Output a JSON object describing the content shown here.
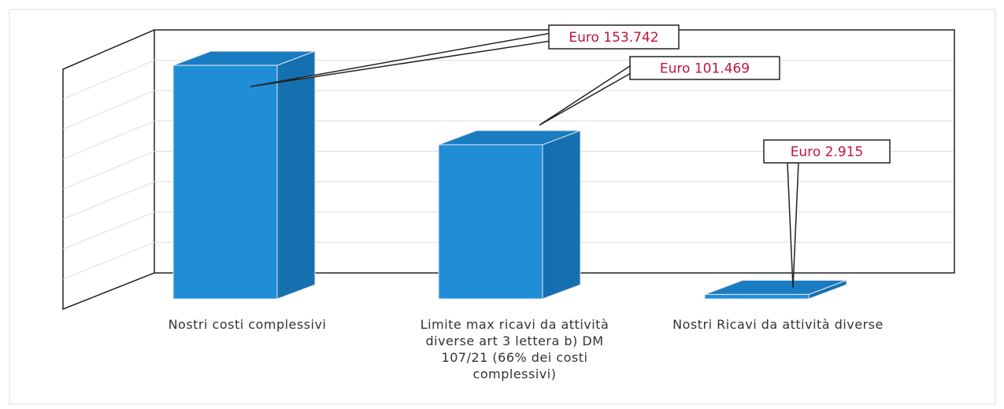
{
  "chart_data": {
    "type": "bar3d",
    "categories": [
      "Nostri costi complessivi",
      "Limite max ricavi da attività diverse art 3 lettera b) DM 107/21 (66% dei costi complessivi)",
      "Nostri Ricavi da attività diverse"
    ],
    "values": [
      153742,
      101469,
      2915
    ],
    "value_labels": [
      "Euro 153.742",
      "Euro 101.469",
      "Euro 2.915"
    ],
    "color": "#1f8ed6",
    "label_color": "#c0143c",
    "ylim": [
      0,
      160000
    ]
  }
}
